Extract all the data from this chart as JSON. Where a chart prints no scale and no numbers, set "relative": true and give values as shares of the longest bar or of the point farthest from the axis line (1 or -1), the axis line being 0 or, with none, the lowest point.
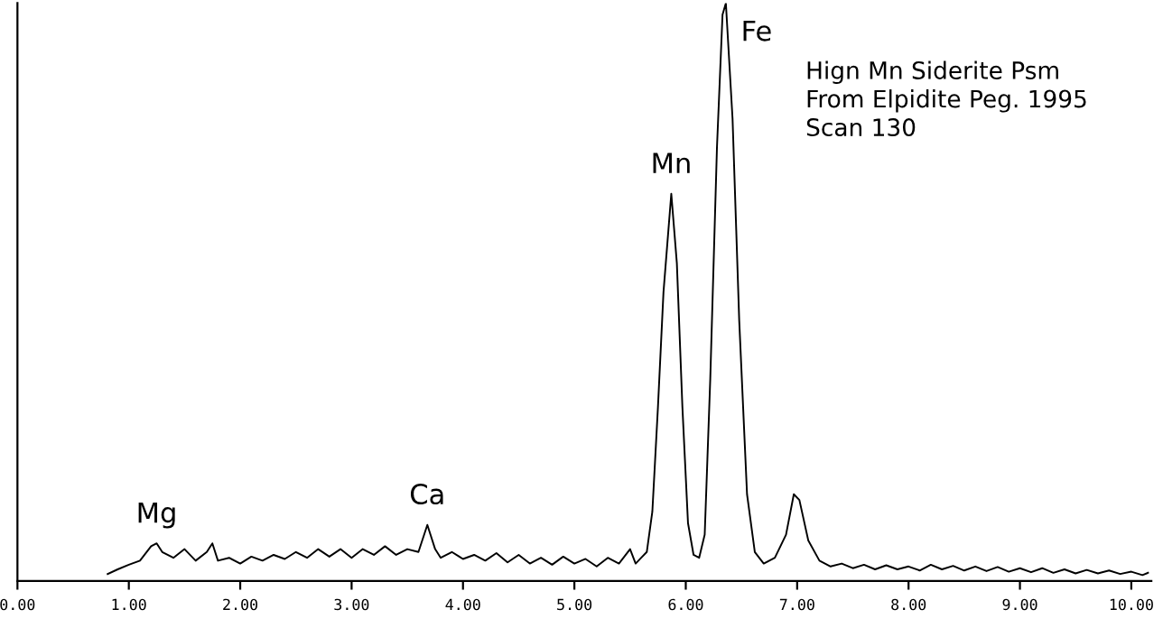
{
  "chart_data": {
    "type": "line",
    "relative": true,
    "color": "#000000",
    "tick_labels": "x",
    "grid": false,
    "marker": "none",
    "line_style": "solid",
    "xlim": [
      0,
      10.18
    ],
    "xticks": [
      {
        "value": 0,
        "label": "0.00"
      },
      {
        "value": 1,
        "label": "1.00"
      },
      {
        "value": 2,
        "label": "2.00"
      },
      {
        "value": 3,
        "label": "3.00"
      },
      {
        "value": 4,
        "label": "4.00"
      },
      {
        "value": 5,
        "label": "5.00"
      },
      {
        "value": 6,
        "label": "6.00"
      },
      {
        "value": 7,
        "label": "7.00"
      },
      {
        "value": 8,
        "label": "8.00"
      },
      {
        "value": 9,
        "label": "9.00"
      },
      {
        "value": 10,
        "label": "10.00"
      }
    ],
    "x": [
      0.81,
      0.9,
      1.0,
      1.1,
      1.2,
      1.25,
      1.3,
      1.4,
      1.5,
      1.6,
      1.7,
      1.75,
      1.8,
      1.9,
      2.0,
      2.1,
      2.2,
      2.3,
      2.4,
      2.5,
      2.6,
      2.7,
      2.8,
      2.9,
      3.0,
      3.1,
      3.2,
      3.3,
      3.4,
      3.5,
      3.6,
      3.68,
      3.75,
      3.8,
      3.9,
      4.0,
      4.1,
      4.2,
      4.3,
      4.4,
      4.5,
      4.6,
      4.7,
      4.8,
      4.9,
      5.0,
      5.1,
      5.2,
      5.3,
      5.4,
      5.5,
      5.55,
      5.6,
      5.65,
      5.7,
      5.75,
      5.8,
      5.87,
      5.92,
      5.97,
      6.02,
      6.07,
      6.12,
      6.17,
      6.22,
      6.28,
      6.33,
      6.36,
      6.42,
      6.48,
      6.55,
      6.62,
      6.7,
      6.8,
      6.9,
      6.97,
      7.02,
      7.1,
      7.2,
      7.3,
      7.4,
      7.5,
      7.6,
      7.7,
      7.8,
      7.9,
      8.0,
      8.1,
      8.2,
      8.3,
      8.4,
      8.5,
      8.6,
      8.7,
      8.8,
      8.9,
      9.0,
      9.1,
      9.2,
      9.3,
      9.4,
      9.5,
      9.6,
      9.7,
      9.8,
      9.9,
      10.0,
      10.1,
      10.15
    ],
    "values": [
      0.012,
      0.02,
      0.028,
      0.035,
      0.06,
      0.065,
      0.05,
      0.04,
      0.055,
      0.035,
      0.05,
      0.065,
      0.035,
      0.04,
      0.03,
      0.042,
      0.035,
      0.045,
      0.038,
      0.05,
      0.04,
      0.055,
      0.042,
      0.055,
      0.04,
      0.055,
      0.045,
      0.06,
      0.045,
      0.055,
      0.05,
      0.097,
      0.055,
      0.04,
      0.05,
      0.038,
      0.045,
      0.035,
      0.048,
      0.032,
      0.045,
      0.03,
      0.04,
      0.028,
      0.042,
      0.03,
      0.038,
      0.025,
      0.04,
      0.03,
      0.055,
      0.03,
      0.04,
      0.05,
      0.12,
      0.3,
      0.5,
      0.67,
      0.55,
      0.3,
      0.1,
      0.045,
      0.04,
      0.08,
      0.35,
      0.75,
      0.98,
      1.0,
      0.8,
      0.45,
      0.15,
      0.05,
      0.03,
      0.04,
      0.08,
      0.15,
      0.14,
      0.07,
      0.035,
      0.025,
      0.03,
      0.022,
      0.028,
      0.02,
      0.027,
      0.02,
      0.025,
      0.018,
      0.028,
      0.02,
      0.026,
      0.018,
      0.025,
      0.017,
      0.024,
      0.016,
      0.022,
      0.015,
      0.022,
      0.014,
      0.02,
      0.013,
      0.019,
      0.013,
      0.018,
      0.012,
      0.016,
      0.01,
      0.014
    ],
    "annotations": [
      {
        "text": "Mg",
        "x": 1.25,
        "y": 0.065
      },
      {
        "text": "Ca",
        "x": 3.68,
        "y": 0.097
      },
      {
        "text": "Mn",
        "x": 5.87,
        "y": 0.67
      },
      {
        "text": "Fe",
        "x": 6.36,
        "y": 1.0
      },
      "Hign Mn Siderite Psm\nFrom Elpidite Peg. 1995\nScan 130"
    ]
  }
}
